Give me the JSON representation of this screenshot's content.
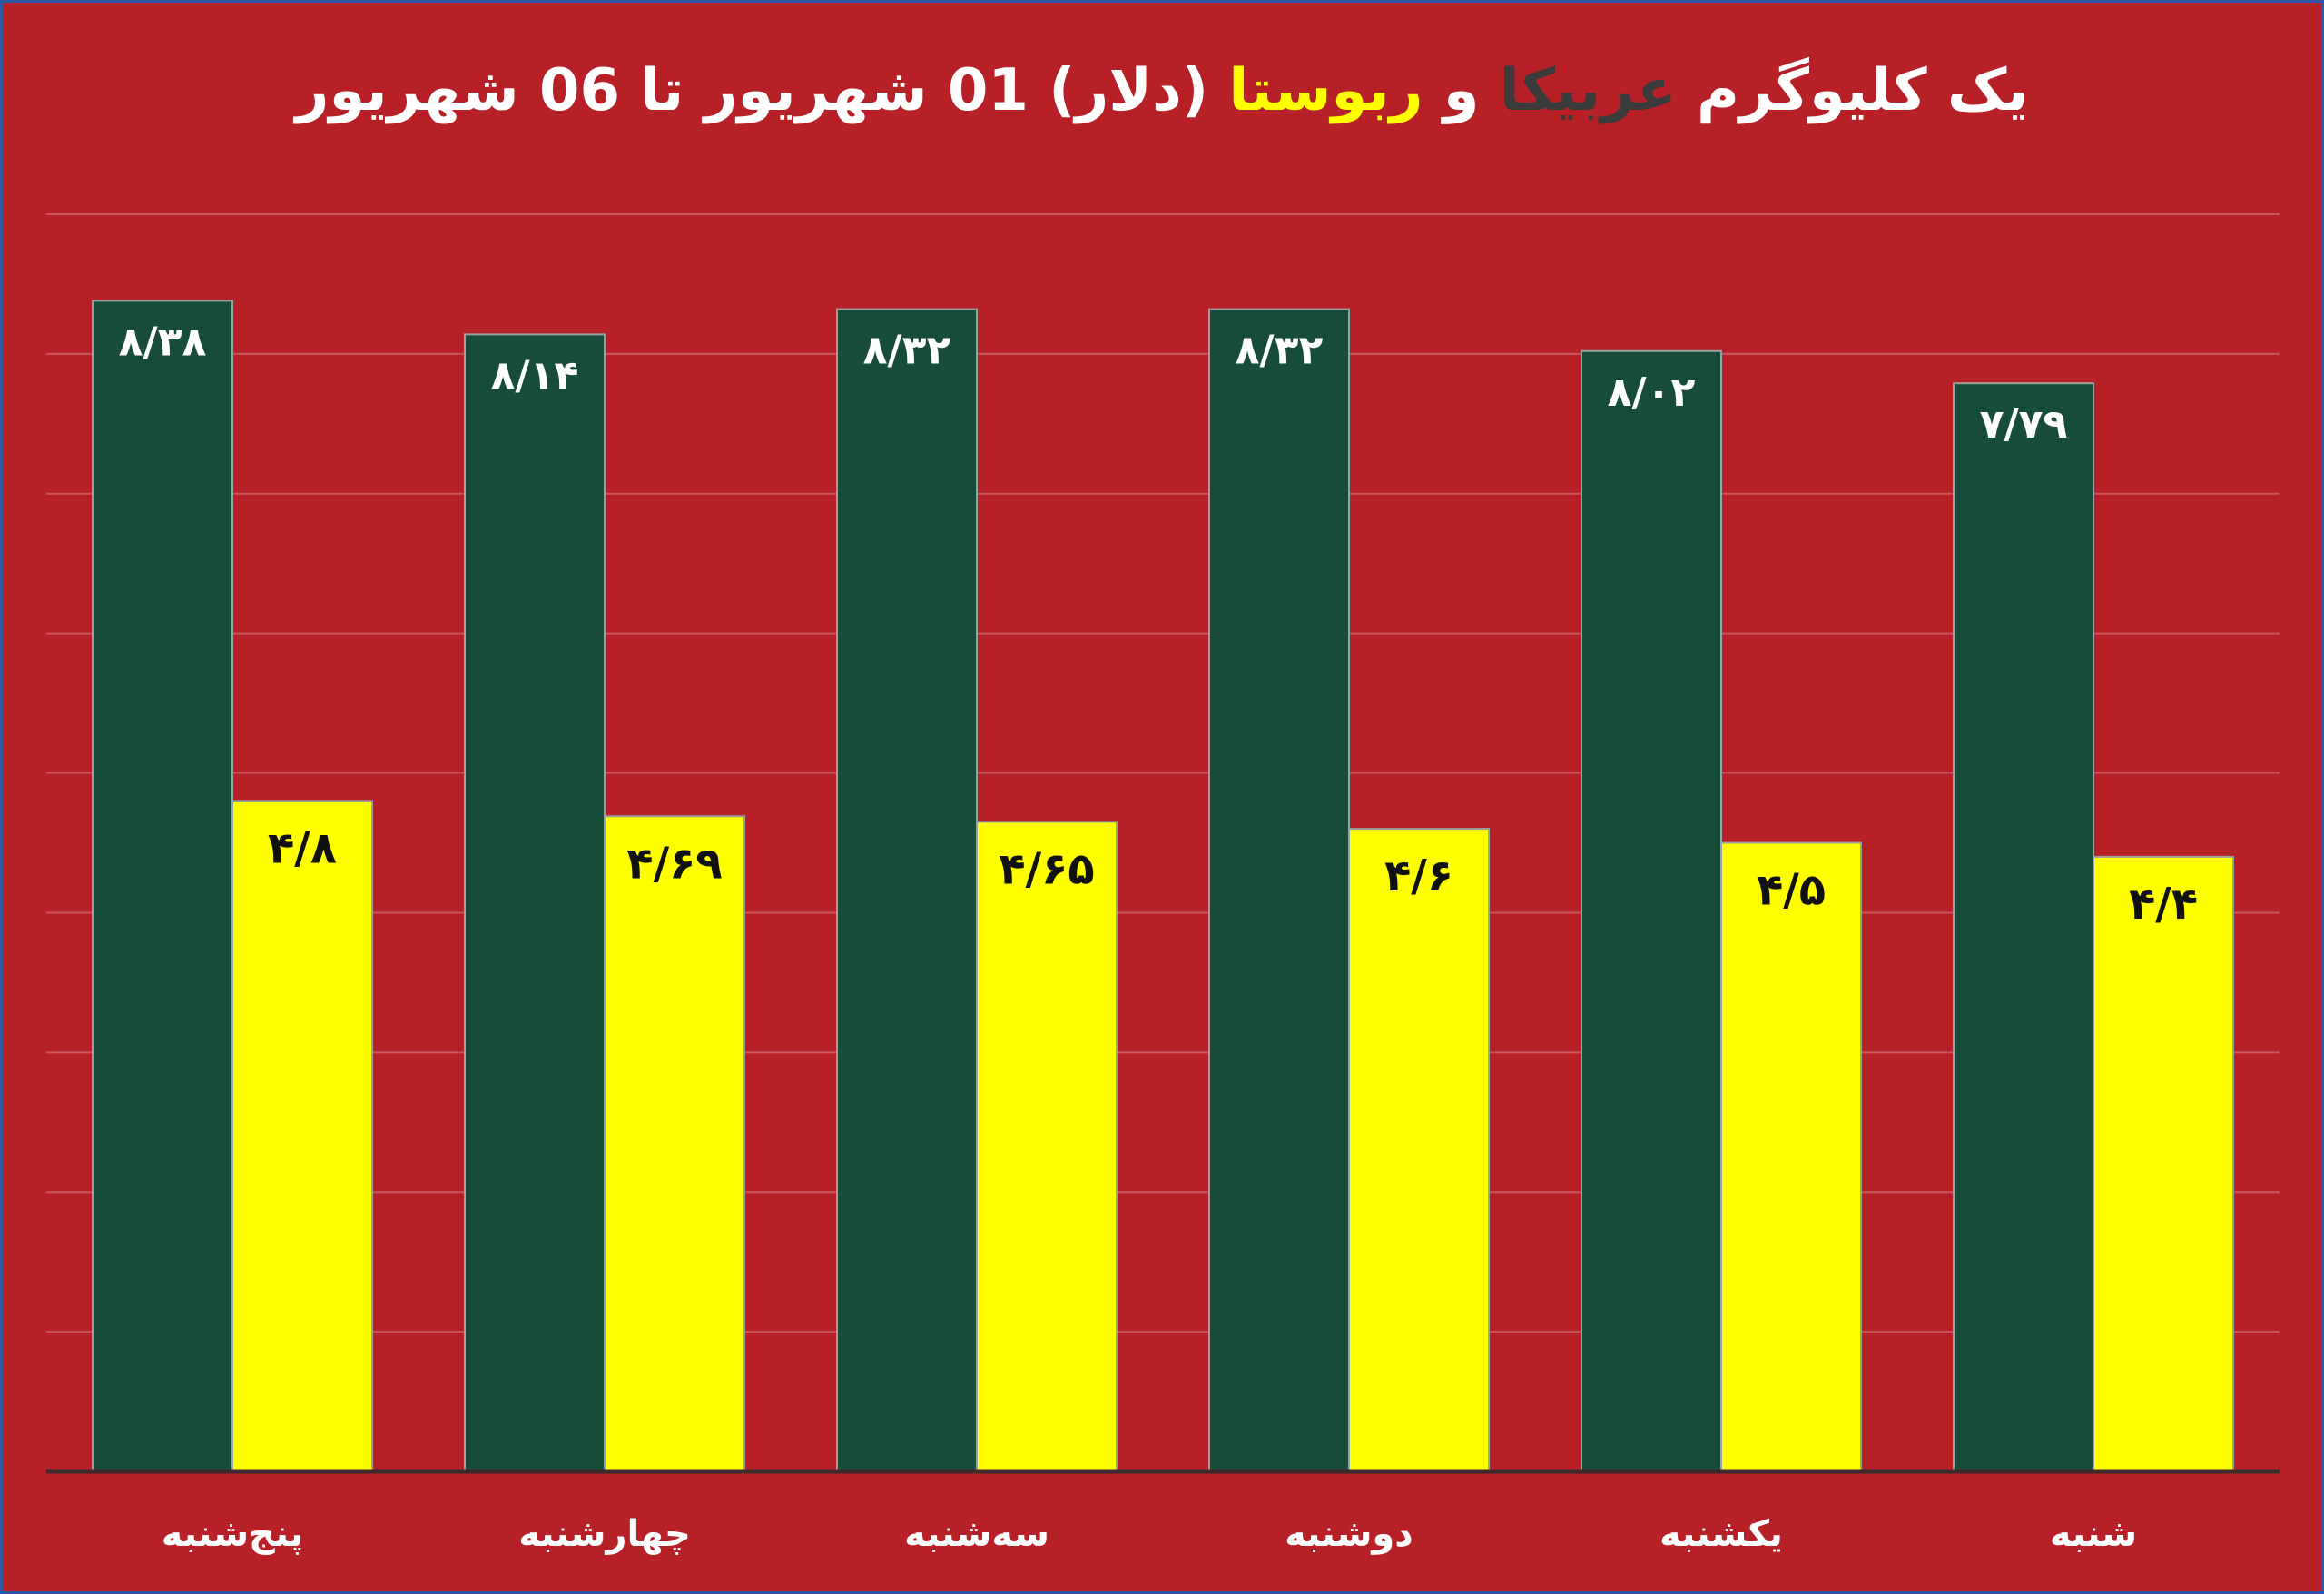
{
  "title": {
    "part1": "یک کلیوگرم",
    "arabica": "عربیکا",
    "and": "و",
    "robusta": "ربوستا",
    "part2": "(دلار) 01 شهریور تا 06 شهریور"
  },
  "colors": {
    "background": "#b72027",
    "arabica": "#174d38",
    "robusta": "#ffff00",
    "gridline": "#c9585d",
    "axis": "#3a2a2a"
  },
  "chart_data": {
    "type": "bar",
    "categories": [
      "پنج‌شنبه",
      "چهارشنبه",
      "سه‌شنبه",
      "دوشنبه",
      "یکشنبه",
      "شنبه"
    ],
    "series": [
      {
        "name": "عربیکا",
        "values": [
          8.38,
          8.14,
          8.32,
          8.32,
          8.02,
          7.79
        ],
        "labels": [
          "۸/۳۸",
          "۸/۱۴",
          "۸/۳۲",
          "۸/۳۲",
          "۸/۰۲",
          "۷/۷۹"
        ]
      },
      {
        "name": "ربوستا",
        "values": [
          4.8,
          4.69,
          4.65,
          4.6,
          4.5,
          4.4
        ],
        "labels": [
          "۴/۸",
          "۴/۶۹",
          "۴/۶۵",
          "۴/۶",
          "۴/۵",
          "۴/۴"
        ]
      }
    ],
    "ylim": [
      0,
      9
    ],
    "grid": true,
    "legend": "none"
  }
}
